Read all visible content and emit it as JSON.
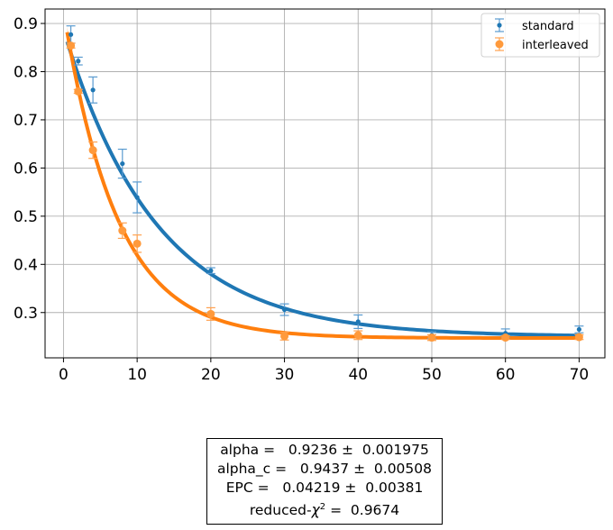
{
  "chart_data": {
    "type": "scatter",
    "x_ticks": [
      0,
      10,
      20,
      30,
      40,
      50,
      60,
      70
    ],
    "y_ticks": [
      0.3,
      0.4,
      0.5,
      0.6,
      0.7,
      0.8,
      0.9
    ],
    "xlim": [
      -2.5,
      73.5
    ],
    "ylim": [
      0.206,
      0.93
    ],
    "grid": true,
    "legend_position": "top-right",
    "series": [
      {
        "name": "standard",
        "color": "#1f77b4",
        "marker": "small-dot",
        "x": [
          1,
          2,
          4,
          8,
          10,
          20,
          30,
          40,
          50,
          60,
          70
        ],
        "y": [
          0.877,
          0.822,
          0.762,
          0.609,
          0.539,
          0.387,
          0.306,
          0.281,
          0.253,
          0.257,
          0.265
        ],
        "yerr": [
          0.018,
          0.008,
          0.027,
          0.03,
          0.032,
          0.006,
          0.012,
          0.014,
          0.007,
          0.009,
          0.007
        ],
        "fit": {
          "A": 0.637,
          "alpha": 0.9236,
          "B": 0.25,
          "band_halfwidth": 0.011
        }
      },
      {
        "name": "interleaved",
        "color": "#ff7f0e",
        "marker": "large-dot",
        "x": [
          1,
          2,
          4,
          8,
          10,
          20,
          30,
          40,
          50,
          60,
          70
        ],
        "y": [
          0.854,
          0.759,
          0.637,
          0.47,
          0.443,
          0.297,
          0.251,
          0.253,
          0.248,
          0.248,
          0.249
        ],
        "yerr": [
          0.005,
          0.004,
          0.017,
          0.016,
          0.018,
          0.013,
          0.008,
          0.009,
          0.006,
          0.004,
          0.005
        ],
        "fit": {
          "A": 0.68,
          "alpha": 0.8716,
          "B": 0.247,
          "band_halfwidth": 0.012
        }
      }
    ]
  },
  "stats": {
    "line1": "alpha =   0.9236 ±  0.001975",
    "line2": "alpha_c =   0.9437 ±  0.00508",
    "line3": "EPC =   0.04219 ±  0.00381",
    "line4_prefix": "reduced-",
    "line4_chi": "χ",
    "line4_sup": "2",
    "line4_suffix": " =  0.9674"
  }
}
